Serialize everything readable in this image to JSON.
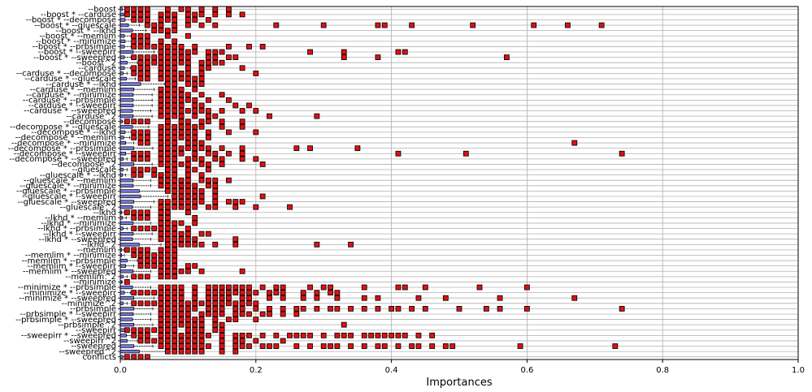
{
  "chart_data": {
    "type": "boxplot",
    "title": "",
    "xlabel": "Importances",
    "ylabel": "",
    "xlim": [
      0.0,
      1.0
    ],
    "x_ticks": [
      "0.0",
      "0.2",
      "0.4",
      "0.6",
      "0.8",
      "1.0"
    ],
    "x_tick_values": [
      0.0,
      0.2,
      0.4,
      0.6,
      0.8,
      1.0
    ],
    "grid": true,
    "orientation": "horizontal",
    "colors": {
      "box_fill": "#7777dd",
      "outlier_fill": "#dd1111",
      "grid": "#b0b0b0"
    },
    "categories": [
      "--boost",
      "--boost * --carduse",
      "--boost * --decompose",
      "--boost * --gluescale",
      "--boost * --lkhd",
      "--boost * --memlim",
      "--boost * --minimize",
      "--boost * --prbsimple",
      "--boost * --sweepirr",
      "--boost * --sweepred",
      "--boost^2",
      "--carduse",
      "--carduse * --decompose",
      "--carduse * --gluescale",
      "--carduse * --lkhd",
      "--carduse * --memlim",
      "--carduse * --minimize",
      "--carduse * --prbsimple",
      "--carduse * --sweepirr",
      "--carduse * --sweepred",
      "--carduse^2",
      "--decompose",
      "--decompose * --gluescale",
      "--decompose * --lkhd",
      "--decompose * --memlim",
      "--decompose * --minimize",
      "--decompose * --prbsimple",
      "--decompose * --sweepirr",
      "--decompose * --sweepred",
      "--decompose^2",
      "--gluescale",
      "--gluescale * --lkhd",
      "--gluescale * --memlim",
      "--gluescale * --minimize",
      "--gluescale * --prbsimple",
      "--gluescale * --sweepirr",
      "--gluescale * --sweepred",
      "--gluescale^2",
      "--lkhd",
      "--lkhd * --memlim",
      "--lkhd * --minimize",
      "--lkhd * --prbsimple",
      "--lkhd * --sweepirr",
      "--lkhd * --sweepred",
      "--lkhd^2",
      "--memlim",
      "--memlim * --minimize",
      "--memlim * --prbsimple",
      "--memlim * --sweepirr",
      "--memlim * --sweepred",
      "--memlim^2",
      "--minimize",
      "--minimize * --prbsimple",
      "--minimize * --sweepirr",
      "--minimize * --sweepred",
      "--minimize^2",
      "--prbsimple",
      "--prbsimple * --sweepirr",
      "--prbsimple * --sweepred",
      "--prbsimple^2",
      "--sweepirr",
      "--sweepirr * --sweepred",
      "--sweepirr^2",
      "--sweepred",
      "--sweepred^2",
      "conflicts"
    ],
    "boxes": [
      {
        "q1": 0.0,
        "q3": 0.003,
        "whisker_high": 0.007
      },
      {
        "q1": 0.0,
        "q3": 0.005,
        "whisker_high": 0.012
      },
      {
        "q1": 0.0,
        "q3": 0.007,
        "whisker_high": 0.018
      },
      {
        "q1": 0.0,
        "q3": 0.012,
        "whisker_high": 0.028
      },
      {
        "q1": 0.0,
        "q3": 0.018,
        "whisker_high": 0.038
      },
      {
        "q1": 0.0,
        "q3": 0.006,
        "whisker_high": 0.016
      },
      {
        "q1": 0.0,
        "q3": 0.007,
        "whisker_high": 0.018
      },
      {
        "q1": 0.0,
        "q3": 0.006,
        "whisker_high": 0.016
      },
      {
        "q1": 0.0,
        "q3": 0.019,
        "whisker_high": 0.05
      },
      {
        "q1": 0.0,
        "q3": 0.006,
        "whisker_high": 0.016
      },
      {
        "q1": 0.0,
        "q3": 0.01,
        "whisker_high": 0.025
      },
      {
        "q1": 0.0,
        "q3": 0.006,
        "whisker_high": 0.015
      },
      {
        "q1": 0.0,
        "q3": 0.004,
        "whisker_high": 0.01
      },
      {
        "q1": 0.0,
        "q3": 0.009,
        "whisker_high": 0.022
      },
      {
        "q1": 0.0,
        "q3": 0.03,
        "whisker_high": 0.065
      },
      {
        "q1": 0.0,
        "q3": 0.02,
        "whisker_high": 0.05
      },
      {
        "q1": 0.0,
        "q3": 0.019,
        "whisker_high": 0.047
      },
      {
        "q1": 0.0,
        "q3": 0.019,
        "whisker_high": 0.047
      },
      {
        "q1": 0.0,
        "q3": 0.019,
        "whisker_high": 0.047
      },
      {
        "q1": 0.0,
        "q3": 0.018,
        "whisker_high": 0.045
      },
      {
        "q1": 0.0,
        "q3": 0.019,
        "whisker_high": 0.047
      },
      {
        "q1": 0.0,
        "q3": 0.003,
        "whisker_high": 0.009
      },
      {
        "q1": 0.0,
        "q3": 0.018,
        "whisker_high": 0.042
      },
      {
        "q1": 0.0,
        "q3": 0.007,
        "whisker_high": 0.018
      },
      {
        "q1": 0.0,
        "q3": 0.005,
        "whisker_high": 0.014
      },
      {
        "q1": 0.0,
        "q3": 0.008,
        "whisker_high": 0.02
      },
      {
        "q1": 0.0,
        "q3": 0.02,
        "whisker_high": 0.048
      },
      {
        "q1": 0.0,
        "q3": 0.008,
        "whisker_high": 0.02
      },
      {
        "q1": 0.0,
        "q3": 0.004,
        "whisker_high": 0.01
      },
      {
        "q1": 0.0,
        "q3": 0.02,
        "whisker_high": 0.047
      },
      {
        "q1": 0.0,
        "q3": 0.004,
        "whisker_high": 0.01
      },
      {
        "q1": 0.0,
        "q3": 0.003,
        "whisker_high": 0.008
      },
      {
        "q1": 0.0,
        "q3": 0.019,
        "whisker_high": 0.045
      },
      {
        "q1": 0.0,
        "q3": 0.019,
        "whisker_high": 0.045
      },
      {
        "q1": 0.0,
        "q3": 0.028,
        "whisker_high": 0.068
      },
      {
        "q1": 0.0,
        "q3": 0.03,
        "whisker_high": 0.07
      },
      {
        "q1": 0.0,
        "q3": 0.02,
        "whisker_high": 0.05
      },
      {
        "q1": 0.0,
        "q3": 0.018,
        "whisker_high": 0.045
      },
      {
        "q1": 0.0,
        "q3": 0.002,
        "whisker_high": 0.006
      },
      {
        "q1": 0.0,
        "q3": 0.003,
        "whisker_high": 0.009
      },
      {
        "q1": 0.0,
        "q3": 0.019,
        "whisker_high": 0.045
      },
      {
        "q1": 0.0,
        "q3": 0.004,
        "whisker_high": 0.01
      },
      {
        "q1": 0.0,
        "q3": 0.019,
        "whisker_high": 0.047
      },
      {
        "q1": 0.0,
        "q3": 0.018,
        "whisker_high": 0.045
      },
      {
        "q1": 0.0,
        "q3": 0.028,
        "whisker_high": 0.06
      },
      {
        "q1": 0.0,
        "q3": 0.002,
        "whisker_high": 0.005
      },
      {
        "q1": 0.0,
        "q3": 0.002,
        "whisker_high": 0.006
      },
      {
        "q1": 0.0,
        "q3": 0.01,
        "whisker_high": 0.025
      },
      {
        "q1": 0.0,
        "q3": 0.008,
        "whisker_high": 0.02
      },
      {
        "q1": 0.0,
        "q3": 0.019,
        "whisker_high": 0.045
      },
      {
        "q1": 0.0,
        "q3": 0.004,
        "whisker_high": 0.01
      },
      {
        "q1": 0.0,
        "q3": 0.001,
        "whisker_high": 0.003
      },
      {
        "q1": 0.0,
        "q3": 0.018,
        "whisker_high": 0.045
      },
      {
        "q1": 0.0,
        "q3": 0.006,
        "whisker_high": 0.015
      },
      {
        "q1": 0.0,
        "q3": 0.02,
        "whisker_high": 0.05
      },
      {
        "q1": 0.0,
        "q3": 0.004,
        "whisker_high": 0.01
      },
      {
        "q1": 0.0,
        "q3": 0.02,
        "whisker_high": 0.048
      },
      {
        "q1": 0.0,
        "q3": 0.019,
        "whisker_high": 0.045
      },
      {
        "q1": 0.0,
        "q3": 0.018,
        "whisker_high": 0.045
      },
      {
        "q1": 0.0,
        "q3": 0.02,
        "whisker_high": 0.048
      },
      {
        "q1": 0.0,
        "q3": 0.008,
        "whisker_high": 0.02
      },
      {
        "q1": 0.0,
        "q3": 0.009,
        "whisker_high": 0.022
      },
      {
        "q1": 0.0,
        "q3": 0.01,
        "whisker_high": 0.025
      },
      {
        "q1": 0.0,
        "q3": 0.02,
        "whisker_high": 0.048
      },
      {
        "q1": 0.0,
        "q3": 0.028,
        "whisker_high": 0.07
      },
      {
        "q1": 0.0,
        "q3": 0.004,
        "whisker_high": 0.01
      }
    ],
    "outliers": [
      [
        0.01,
        0.02,
        0.03,
        0.04,
        0.07,
        0.09,
        0.1,
        0.12,
        0.14,
        0.16
      ],
      [
        0.01,
        0.02,
        0.03,
        0.04,
        0.06,
        0.07,
        0.08,
        0.1,
        0.11,
        0.12,
        0.14,
        0.16,
        0.18
      ],
      [
        0.02,
        0.03,
        0.04,
        0.06,
        0.07,
        0.08,
        0.1,
        0.11,
        0.13
      ],
      [
        0.04,
        0.05,
        0.06,
        0.08,
        0.1,
        0.12,
        0.14,
        0.23,
        0.3,
        0.38,
        0.39,
        0.43,
        0.52,
        0.61,
        0.66,
        0.71
      ],
      [
        0.05,
        0.06,
        0.07,
        0.08
      ],
      [
        0.02,
        0.03,
        0.04,
        0.07,
        0.1
      ],
      [
        0.02,
        0.03,
        0.04,
        0.06,
        0.08
      ],
      [
        0.02,
        0.03,
        0.04,
        0.05,
        0.06,
        0.07,
        0.08,
        0.09,
        0.11,
        0.16,
        0.19,
        0.21
      ],
      [
        0.06,
        0.07,
        0.08,
        0.09,
        0.1,
        0.11,
        0.13,
        0.14,
        0.15,
        0.28,
        0.33,
        0.41,
        0.42
      ],
      [
        0.02,
        0.03,
        0.04,
        0.05,
        0.06,
        0.07,
        0.08,
        0.09,
        0.1,
        0.13,
        0.14,
        0.16,
        0.17,
        0.33,
        0.38,
        0.57
      ],
      [
        0.03,
        0.04,
        0.05,
        0.06,
        0.07,
        0.08,
        0.09,
        0.1,
        0.12,
        0.13,
        0.14,
        0.15
      ],
      [
        0.02,
        0.03,
        0.04,
        0.06,
        0.07,
        0.08,
        0.1,
        0.12,
        0.13,
        0.18
      ],
      [
        0.02,
        0.03,
        0.04,
        0.06,
        0.07,
        0.08,
        0.09,
        0.1,
        0.12,
        0.2
      ],
      [
        0.03,
        0.04,
        0.06,
        0.07,
        0.08,
        0.09,
        0.1,
        0.11,
        0.12
      ],
      [
        0.07,
        0.08,
        0.1,
        0.11,
        0.12
      ],
      [
        0.06,
        0.07,
        0.08,
        0.09,
        0.11
      ],
      [
        0.06,
        0.07,
        0.08,
        0.09,
        0.1,
        0.12,
        0.15
      ],
      [
        0.06,
        0.07,
        0.08,
        0.09,
        0.1,
        0.11,
        0.13,
        0.16
      ],
      [
        0.06,
        0.07,
        0.08,
        0.09,
        0.11,
        0.12,
        0.17,
        0.19
      ],
      [
        0.06,
        0.07,
        0.08,
        0.09,
        0.1,
        0.11,
        0.12,
        0.13,
        0.15,
        0.18,
        0.2
      ],
      [
        0.06,
        0.07,
        0.08,
        0.09,
        0.11,
        0.13,
        0.14,
        0.22,
        0.29
      ],
      [
        0.01,
        0.02,
        0.03,
        0.04,
        0.07,
        0.09,
        0.1,
        0.12,
        0.13,
        0.15,
        0.18
      ],
      [
        0.06,
        0.07,
        0.08,
        0.09,
        0.1,
        0.11,
        0.12,
        0.15,
        0.18
      ],
      [
        0.02,
        0.03,
        0.04,
        0.06,
        0.07,
        0.08,
        0.09,
        0.1,
        0.11,
        0.13,
        0.16,
        0.2
      ],
      [
        0.02,
        0.03,
        0.04,
        0.06,
        0.07,
        0.08,
        0.09,
        0.1,
        0.11,
        0.13
      ],
      [
        0.03,
        0.04,
        0.06,
        0.07,
        0.08,
        0.1,
        0.11,
        0.12,
        0.67
      ],
      [
        0.06,
        0.07,
        0.08,
        0.09,
        0.1,
        0.11,
        0.12,
        0.13,
        0.15,
        0.18,
        0.26,
        0.28,
        0.35
      ],
      [
        0.02,
        0.03,
        0.04,
        0.06,
        0.07,
        0.08,
        0.09,
        0.11,
        0.13,
        0.14,
        0.16,
        0.18,
        0.41,
        0.51,
        0.74
      ],
      [
        0.02,
        0.03,
        0.04,
        0.06,
        0.07,
        0.08,
        0.1,
        0.11,
        0.12,
        0.14,
        0.15,
        0.18,
        0.2
      ],
      [
        0.06,
        0.07,
        0.08,
        0.09,
        0.1,
        0.12,
        0.13,
        0.15,
        0.21
      ],
      [
        0.02,
        0.03,
        0.04,
        0.05,
        0.07,
        0.08,
        0.1,
        0.11,
        0.13
      ],
      [
        0.02,
        0.03,
        0.05,
        0.06,
        0.07,
        0.08,
        0.1,
        0.12
      ],
      [
        0.06,
        0.07,
        0.08,
        0.09,
        0.1,
        0.12,
        0.13,
        0.14,
        0.16
      ],
      [
        0.06,
        0.07,
        0.08,
        0.09,
        0.1,
        0.11,
        0.13,
        0.14
      ],
      [
        0.07,
        0.08,
        0.09,
        0.1,
        0.11,
        0.12,
        0.14
      ],
      [
        0.08,
        0.09,
        0.1,
        0.11,
        0.12,
        0.14,
        0.21
      ],
      [
        0.06,
        0.07,
        0.08,
        0.09,
        0.1,
        0.11,
        0.12,
        0.14,
        0.16,
        0.17,
        0.18
      ],
      [
        0.06,
        0.07,
        0.08,
        0.09,
        0.1,
        0.11,
        0.13,
        0.14,
        0.17,
        0.2,
        0.25
      ],
      [
        0.01,
        0.02,
        0.03,
        0.04,
        0.06,
        0.07,
        0.1
      ],
      [
        0.02,
        0.03,
        0.04,
        0.06,
        0.07,
        0.11
      ],
      [
        0.06,
        0.07,
        0.08,
        0.09,
        0.11
      ],
      [
        0.02,
        0.03,
        0.04,
        0.05,
        0.06,
        0.07,
        0.08,
        0.1
      ],
      [
        0.06,
        0.07,
        0.08,
        0.09,
        0.1,
        0.12,
        0.13
      ],
      [
        0.06,
        0.07,
        0.08,
        0.09,
        0.1,
        0.11,
        0.17
      ],
      [
        0.07,
        0.08,
        0.09,
        0.1,
        0.11,
        0.12,
        0.14,
        0.17,
        0.29,
        0.34
      ],
      [
        0.01,
        0.02,
        0.03,
        0.04,
        0.06,
        0.07,
        0.08
      ],
      [
        0.02,
        0.03,
        0.04,
        0.05,
        0.06,
        0.07,
        0.08
      ],
      [
        0.03,
        0.04,
        0.05,
        0.06,
        0.07,
        0.08
      ],
      [
        0.03,
        0.04,
        0.05,
        0.06,
        0.07,
        0.08,
        0.1,
        0.11
      ],
      [
        0.06,
        0.07,
        0.08,
        0.09,
        0.1,
        0.12,
        0.18
      ],
      [
        0.02,
        0.03,
        0.04,
        0.06,
        0.07,
        0.08
      ],
      [
        0.01
      ],
      [
        0.06,
        0.07,
        0.08,
        0.09,
        0.11,
        0.13,
        0.14,
        0.15,
        0.16,
        0.17,
        0.18,
        0.19,
        0.21,
        0.23,
        0.24,
        0.28,
        0.3,
        0.31,
        0.36,
        0.41,
        0.42,
        0.45,
        0.53,
        0.6
      ],
      [
        0.02,
        0.03,
        0.04,
        0.05,
        0.06,
        0.07,
        0.08,
        0.09,
        0.11,
        0.13,
        0.14,
        0.15,
        0.16,
        0.17,
        0.18,
        0.19,
        0.2,
        0.22,
        0.23,
        0.24,
        0.27,
        0.29,
        0.31,
        0.32
      ],
      [
        0.06,
        0.07,
        0.08,
        0.09,
        0.11,
        0.13,
        0.14,
        0.15,
        0.16,
        0.18,
        0.19,
        0.22,
        0.24,
        0.27,
        0.29,
        0.32,
        0.36,
        0.38,
        0.44,
        0.48,
        0.56,
        0.67
      ],
      [
        0.02,
        0.03,
        0.04,
        0.05,
        0.06,
        0.07,
        0.08,
        0.09,
        0.1,
        0.11,
        0.12,
        0.13,
        0.14,
        0.15,
        0.16,
        0.17,
        0.18,
        0.19,
        0.2
      ],
      [
        0.06,
        0.07,
        0.08,
        0.09,
        0.1,
        0.11,
        0.13,
        0.14,
        0.15,
        0.17,
        0.18,
        0.2,
        0.22,
        0.24,
        0.26,
        0.27,
        0.29,
        0.31,
        0.32,
        0.34,
        0.36,
        0.38,
        0.4,
        0.41,
        0.43,
        0.45,
        0.5,
        0.54,
        0.56,
        0.6,
        0.74
      ],
      [
        0.06,
        0.07,
        0.08,
        0.09,
        0.1,
        0.12,
        0.13,
        0.14,
        0.15,
        0.17,
        0.18,
        0.19,
        0.21,
        0.22,
        0.24,
        0.26
      ],
      [
        0.06,
        0.07,
        0.08,
        0.09,
        0.1,
        0.11,
        0.12,
        0.14,
        0.16,
        0.17,
        0.2
      ],
      [
        0.06,
        0.07,
        0.08,
        0.09,
        0.1,
        0.11,
        0.12,
        0.14,
        0.15,
        0.33
      ],
      [
        0.01,
        0.02,
        0.03,
        0.04,
        0.05,
        0.06,
        0.07,
        0.08,
        0.1,
        0.11,
        0.12,
        0.14,
        0.15
      ],
      [
        0.02,
        0.03,
        0.04,
        0.06,
        0.07,
        0.08,
        0.09,
        0.1,
        0.11,
        0.12,
        0.13,
        0.15,
        0.17,
        0.18,
        0.19,
        0.21,
        0.23,
        0.25,
        0.26,
        0.27,
        0.28,
        0.3,
        0.32,
        0.33,
        0.34,
        0.36,
        0.37,
        0.38,
        0.39,
        0.4,
        0.41,
        0.42,
        0.44,
        0.46
      ],
      [
        0.03,
        0.04,
        0.05,
        0.06,
        0.07,
        0.08,
        0.09,
        0.1,
        0.11,
        0.12,
        0.15,
        0.17,
        0.18,
        0.2,
        0.24
      ],
      [
        0.06,
        0.07,
        0.08,
        0.09,
        0.1,
        0.11,
        0.12,
        0.13,
        0.15,
        0.17,
        0.18,
        0.19,
        0.21,
        0.22,
        0.23,
        0.26,
        0.28,
        0.3,
        0.31,
        0.32,
        0.34,
        0.36,
        0.38,
        0.39,
        0.41,
        0.43,
        0.44,
        0.46,
        0.48,
        0.49,
        0.59,
        0.73
      ],
      [
        0.07,
        0.08,
        0.09,
        0.1,
        0.11,
        0.12,
        0.15,
        0.17
      ],
      [
        0.01,
        0.02,
        0.03,
        0.04
      ]
    ]
  }
}
